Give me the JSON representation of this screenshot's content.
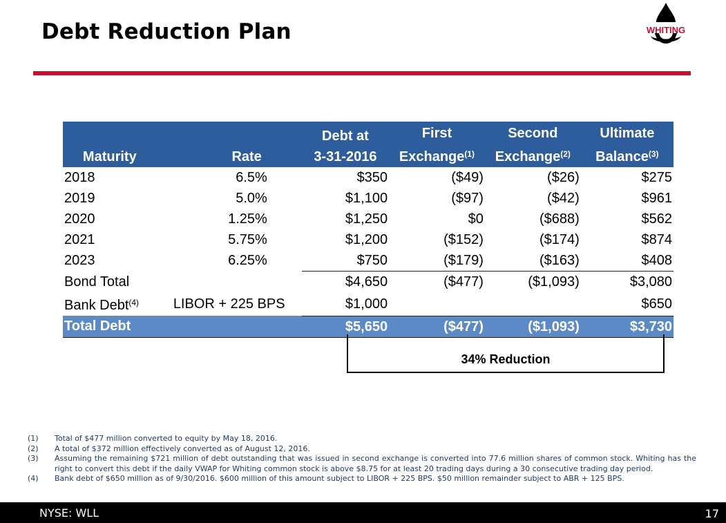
{
  "title": "Debt Reduction Plan",
  "logo": {
    "text": "WHITING",
    "color": "#c8102e"
  },
  "table": {
    "headers": {
      "maturity": "Maturity",
      "rate": "Rate",
      "debt_line1": "Debt at",
      "debt_line2": "3-31-2016",
      "first_line1": "First",
      "first_line2": "Exchange",
      "first_sup": "(1)",
      "second_line1": "Second",
      "second_line2": "Exchange",
      "second_sup": "(2)",
      "ult_line1": "Ultimate",
      "ult_line2": "Balance",
      "ult_sup": "(3)"
    },
    "rows": [
      {
        "maturity": "2018",
        "rate": "6.5%",
        "debt": "$350",
        "first": "($49)",
        "second": "($26)",
        "ultimate": "$275"
      },
      {
        "maturity": "2019",
        "rate": "5.0%",
        "debt": "$1,100",
        "first": "($97)",
        "second": "($42)",
        "ultimate": "$961"
      },
      {
        "maturity": "2020",
        "rate": "1.25%",
        "debt": "$1,250",
        "first": "$0",
        "second": "($688)",
        "ultimate": "$562"
      },
      {
        "maturity": "2021",
        "rate": "5.75%",
        "debt": "$1,200",
        "first": "($152)",
        "second": "($174)",
        "ultimate": "$874"
      },
      {
        "maturity": "2023",
        "rate": "6.25%",
        "debt": "$750",
        "first": "($179)",
        "second": "($163)",
        "ultimate": "$408"
      }
    ],
    "bond_total": {
      "label": "Bond Total",
      "debt": "$4,650",
      "first": "($477)",
      "second": "($1,093)",
      "ultimate": "$3,080"
    },
    "bank_debt": {
      "label": "Bank Debt",
      "sup": "(4)",
      "rate": "LIBOR + 225 BPS",
      "debt": "$1,000",
      "ultimate": "$650"
    },
    "total_debt": {
      "label": "Total Debt",
      "debt": "$5,650",
      "first": "($477)",
      "second": "($1,093)",
      "ultimate": "$3,730"
    },
    "header_color": "#2e5d9e",
    "total_color": "#5b8ac6"
  },
  "reduction_label": "34% Reduction",
  "footnotes": [
    {
      "num": "(1)",
      "text": "Total of $477 million converted to equity by May 18, 2016."
    },
    {
      "num": "(2)",
      "text": "A total of $372 million effectively converted as of August 12, 2016."
    },
    {
      "num": "(3)",
      "text": "Assuming the remaining $721 million of debt outstanding that was issued in second exchange is converted into 77.6 million shares of common stock. Whiting has the right to convert this debt if the daily VWAP for Whiting common stock is above $8.75 for at least 20 trading days during a 30 consecutive trading day period."
    },
    {
      "num": "(4)",
      "text": "Bank debt of $650 million as of 9/30/2016.  $600 million of this amount subject to LIBOR + 225 BPS.  $50 million remainder subject to ABR + 125 BPS."
    }
  ],
  "footer": {
    "ticker": "NYSE: WLL",
    "page": "17"
  }
}
